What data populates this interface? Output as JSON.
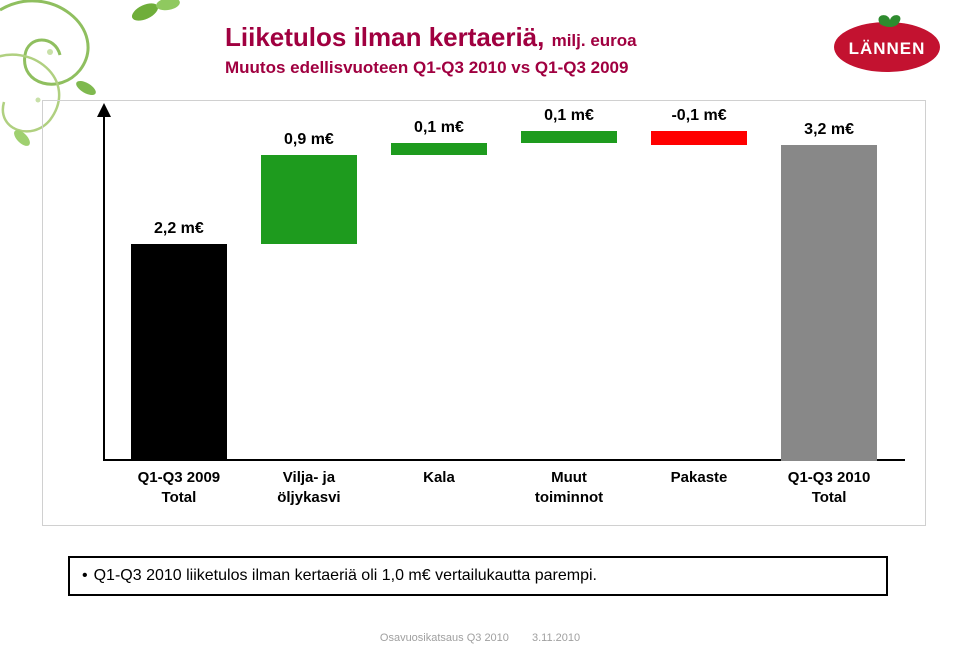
{
  "title_main": "Liiketulos ilman kertaeriä,",
  "title_unit": "milj. euroa",
  "subtitle": "Muutos edellisvuoteen Q1-Q3 2010 vs Q1-Q3 2009",
  "logo": {
    "text": "LÄNNEN",
    "bg": "#c31230",
    "leaf": "#2e8b2e"
  },
  "colors": {
    "title": "#a00040",
    "axis": "#000000",
    "chart_border": "#d0d0d0",
    "background": "#ffffff",
    "footer": "#a0a0a0"
  },
  "chart": {
    "type": "waterfall",
    "y_max": 3.5,
    "slot_width_pct": 13.5,
    "bars": [
      {
        "key": "start",
        "label1": "Q1-Q3 2009",
        "label2": "Total",
        "value_label": "2,2 m€",
        "base": 0.0,
        "height": 2.2,
        "color": "#000000",
        "label_above_top": false
      },
      {
        "key": "vilja",
        "label1": "Vilja- ja",
        "label2": "öljykasvi",
        "value_label": "0,9 m€",
        "base": 2.2,
        "height": 0.9,
        "color": "#1e9b1e",
        "label_above_top": true
      },
      {
        "key": "kala",
        "label1": "Kala",
        "label2": "",
        "value_label": "0,1 m€",
        "base": 3.1,
        "height": 0.12,
        "color": "#1e9b1e",
        "label_above_top": true
      },
      {
        "key": "muut",
        "label1": "Muut",
        "label2": "toiminnot",
        "value_label": "0,1 m€",
        "base": 3.22,
        "height": 0.12,
        "color": "#1e9b1e",
        "label_above_top": true
      },
      {
        "key": "pakaste",
        "label1": "Pakaste",
        "label2": "",
        "value_label": "-0,1 m€",
        "base": 3.2,
        "height": 0.14,
        "color": "#ff0000",
        "label_above_top": true
      },
      {
        "key": "end",
        "label1": "Q1-Q3 2010",
        "label2": "Total",
        "value_label": "3,2 m€",
        "base": 0.0,
        "height": 3.2,
        "color": "#888888",
        "label_above_top": true
      }
    ],
    "value_label_fontsize": 16,
    "xlabel_fontsize": 15,
    "bar_inner_width_pct": 88
  },
  "note": "Q1-Q3 2010 liiketulos ilman kertaeriä oli 1,0 m€ vertailukautta parempi.",
  "footer_left": "Osavuosikatsaus Q3 2010",
  "footer_right": "3.11.2010"
}
